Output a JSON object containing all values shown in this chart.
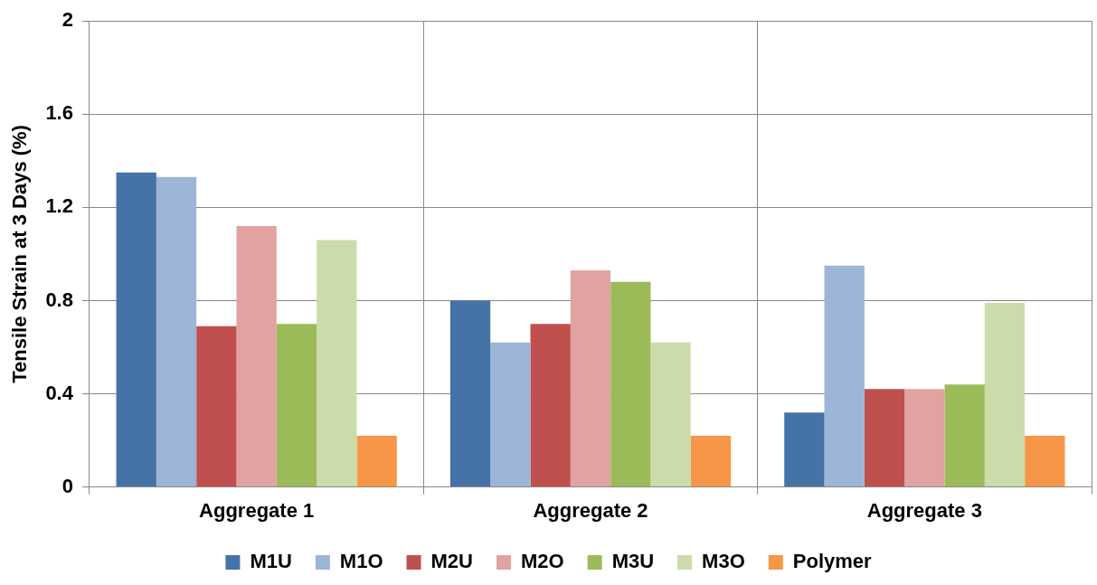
{
  "chart_data": {
    "type": "bar",
    "ylabel": "Tensile Strain at 3 Days (%)",
    "categories": [
      "Aggregate 1",
      "Aggregate 2",
      "Aggregate 3"
    ],
    "series": [
      {
        "name": "M1U",
        "color": "#4572a7",
        "values": [
          1.35,
          0.8,
          0.32
        ]
      },
      {
        "name": "M1O",
        "color": "#9db5d6",
        "values": [
          1.33,
          0.62,
          0.95
        ]
      },
      {
        "name": "M2U",
        "color": "#c0504d",
        "values": [
          0.69,
          0.7,
          0.42
        ]
      },
      {
        "name": "M2O",
        "color": "#e0a3a1",
        "values": [
          1.12,
          0.93,
          0.42
        ]
      },
      {
        "name": "M3U",
        "color": "#9bbb59",
        "values": [
          0.7,
          0.88,
          0.44
        ]
      },
      {
        "name": "M3O",
        "color": "#cbdcaa",
        "values": [
          1.06,
          0.62,
          0.79
        ]
      },
      {
        "name": "Polymer",
        "color": "#f79646",
        "values": [
          0.22,
          0.22,
          0.22
        ]
      }
    ],
    "ylim": [
      0,
      2
    ],
    "yticks": [
      0,
      0.4,
      0.8,
      1.2,
      1.6,
      2
    ],
    "grid": true,
    "legend": "bottom"
  }
}
